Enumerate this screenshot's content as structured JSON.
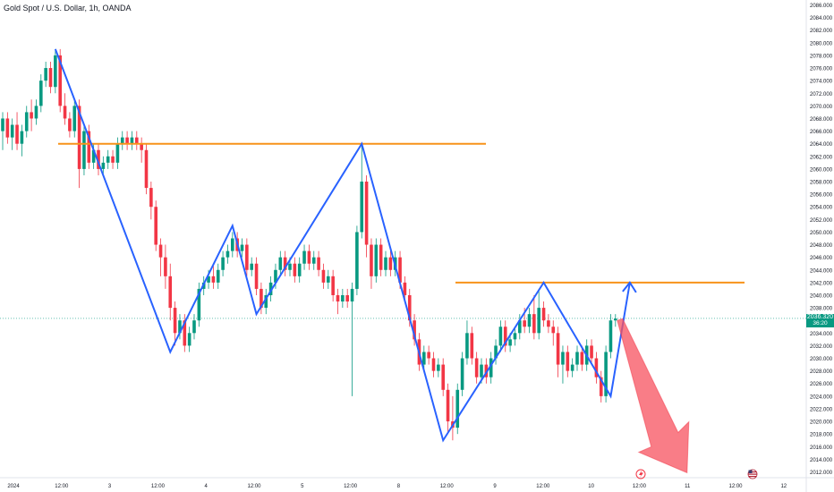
{
  "title": "Gold Spot / U.S. Dollar, 1h, OANDA",
  "colors": {
    "up": "#089981",
    "down": "#f23645",
    "pattern": "#2962ff",
    "level": "#f7931a",
    "arrow_down": "#f7525f",
    "bg": "#ffffff",
    "text": "#131722",
    "current_price_line": "#089981"
  },
  "current_price": {
    "value": "2036.320",
    "countdown": "36:20"
  },
  "chart_data": {
    "type": "candlestick",
    "title": "Gold Spot / U.S. Dollar, 1h, OANDA",
    "ylim": [
      2010,
      2087
    ],
    "y_ticks": [
      2012.0,
      2014.0,
      2016.0,
      2018.0,
      2020.0,
      2022.0,
      2024.0,
      2026.0,
      2028.0,
      2030.0,
      2032.0,
      2034.0,
      2036.0,
      2038.0,
      2040.0,
      2042.0,
      2044.0,
      2046.0,
      2048.0,
      2050.0,
      2052.0,
      2054.0,
      2056.0,
      2058.0,
      2060.0,
      2062.0,
      2064.0,
      2066.0,
      2068.0,
      2070.0,
      2072.0,
      2074.0,
      2076.0,
      2078.0,
      2080.0,
      2082.0,
      2084.0,
      2086.0
    ],
    "x_ticks": [
      "2024",
      "12:00",
      "3",
      "12:00",
      "4",
      "12:00",
      "5",
      "12:00",
      "8",
      "12:00",
      "9",
      "12:00",
      "10",
      "12:00",
      "11",
      "12:00",
      "12"
    ],
    "candles": [
      {
        "o": 2066.0,
        "c": 2068.0,
        "h": 2069.0,
        "l": 2063.0
      },
      {
        "o": 2068.0,
        "c": 2065.0,
        "h": 2069.0,
        "l": 2064.0
      },
      {
        "o": 2065.0,
        "c": 2067.0,
        "h": 2068.0,
        "l": 2063.0
      },
      {
        "o": 2067.0,
        "c": 2064.0,
        "h": 2069.0,
        "l": 2063.0
      },
      {
        "o": 2064.0,
        "c": 2066.0,
        "h": 2067.0,
        "l": 2062.0
      },
      {
        "o": 2066.0,
        "c": 2069.0,
        "h": 2070.0,
        "l": 2065.0
      },
      {
        "o": 2069.0,
        "c": 2068.0,
        "h": 2071.0,
        "l": 2066.0
      },
      {
        "o": 2068.0,
        "c": 2070.0,
        "h": 2071.0,
        "l": 2067.0
      },
      {
        "o": 2070.0,
        "c": 2074.0,
        "h": 2075.0,
        "l": 2069.0
      },
      {
        "o": 2074.0,
        "c": 2076.0,
        "h": 2077.0,
        "l": 2073.0
      },
      {
        "o": 2076.0,
        "c": 2073.0,
        "h": 2077.0,
        "l": 2072.0
      },
      {
        "o": 2073.0,
        "c": 2078.0,
        "h": 2079.0,
        "l": 2072.0
      },
      {
        "o": 2078.0,
        "c": 2070.0,
        "h": 2079.0,
        "l": 2069.0
      },
      {
        "o": 2070.0,
        "c": 2068.0,
        "h": 2072.0,
        "l": 2067.0
      },
      {
        "o": 2068.0,
        "c": 2066.0,
        "h": 2069.0,
        "l": 2065.0
      },
      {
        "o": 2066.0,
        "c": 2070.0,
        "h": 2071.0,
        "l": 2065.0
      },
      {
        "o": 2070.0,
        "c": 2060.0,
        "h": 2071.0,
        "l": 2057.0
      },
      {
        "o": 2060.0,
        "c": 2066.0,
        "h": 2067.0,
        "l": 2059.0
      },
      {
        "o": 2066.0,
        "c": 2061.0,
        "h": 2067.0,
        "l": 2060.0
      },
      {
        "o": 2061.0,
        "c": 2063.0,
        "h": 2064.0,
        "l": 2060.0
      },
      {
        "o": 2063.0,
        "c": 2060.0,
        "h": 2064.0,
        "l": 2059.0
      },
      {
        "o": 2060.0,
        "c": 2061.0,
        "h": 2062.0,
        "l": 2059.0
      },
      {
        "o": 2061.0,
        "c": 2062.0,
        "h": 2063.0,
        "l": 2060.0
      },
      {
        "o": 2062.0,
        "c": 2061.0,
        "h": 2063.0,
        "l": 2060.0
      },
      {
        "o": 2061.0,
        "c": 2064.0,
        "h": 2065.0,
        "l": 2060.0
      },
      {
        "o": 2064.0,
        "c": 2065.0,
        "h": 2066.0,
        "l": 2063.0
      },
      {
        "o": 2065.0,
        "c": 2064.0,
        "h": 2066.0,
        "l": 2063.0
      },
      {
        "o": 2064.0,
        "c": 2065.0,
        "h": 2066.0,
        "l": 2063.0
      },
      {
        "o": 2065.0,
        "c": 2064.0,
        "h": 2066.0,
        "l": 2063.0
      },
      {
        "o": 2064.0,
        "c": 2063.0,
        "h": 2065.0,
        "l": 2061.0
      },
      {
        "o": 2063.0,
        "c": 2057.0,
        "h": 2064.0,
        "l": 2056.0
      },
      {
        "o": 2057.0,
        "c": 2054.0,
        "h": 2058.0,
        "l": 2052.0
      },
      {
        "o": 2054.0,
        "c": 2048.0,
        "h": 2055.0,
        "l": 2047.0
      },
      {
        "o": 2048.0,
        "c": 2046.0,
        "h": 2049.0,
        "l": 2043.0
      },
      {
        "o": 2046.0,
        "c": 2043.0,
        "h": 2048.0,
        "l": 2041.0
      },
      {
        "o": 2043.0,
        "c": 2038.0,
        "h": 2045.0,
        "l": 2036.0
      },
      {
        "o": 2038.0,
        "c": 2034.0,
        "h": 2039.0,
        "l": 2032.0
      },
      {
        "o": 2034.0,
        "c": 2036.0,
        "h": 2037.0,
        "l": 2033.0
      },
      {
        "o": 2036.0,
        "c": 2032.0,
        "h": 2037.0,
        "l": 2031.0
      },
      {
        "o": 2032.0,
        "c": 2034.0,
        "h": 2035.0,
        "l": 2031.0
      },
      {
        "o": 2034.0,
        "c": 2036.0,
        "h": 2037.0,
        "l": 2033.0
      },
      {
        "o": 2036.0,
        "c": 2041.0,
        "h": 2042.0,
        "l": 2035.0
      },
      {
        "o": 2041.0,
        "c": 2042.0,
        "h": 2043.0,
        "l": 2040.0
      },
      {
        "o": 2042.0,
        "c": 2043.0,
        "h": 2044.0,
        "l": 2041.0
      },
      {
        "o": 2043.0,
        "c": 2042.0,
        "h": 2045.0,
        "l": 2041.0
      },
      {
        "o": 2042.0,
        "c": 2044.0,
        "h": 2045.0,
        "l": 2041.0
      },
      {
        "o": 2044.0,
        "c": 2046.0,
        "h": 2047.0,
        "l": 2043.0
      },
      {
        "o": 2046.0,
        "c": 2047.0,
        "h": 2048.0,
        "l": 2045.0
      },
      {
        "o": 2047.0,
        "c": 2049.0,
        "h": 2050.0,
        "l": 2046.0
      },
      {
        "o": 2049.0,
        "c": 2047.0,
        "h": 2050.0,
        "l": 2046.0
      },
      {
        "o": 2047.0,
        "c": 2048.0,
        "h": 2049.0,
        "l": 2046.0
      },
      {
        "o": 2048.0,
        "c": 2044.0,
        "h": 2049.0,
        "l": 2043.0
      },
      {
        "o": 2044.0,
        "c": 2045.0,
        "h": 2046.0,
        "l": 2043.0
      },
      {
        "o": 2045.0,
        "c": 2041.0,
        "h": 2046.0,
        "l": 2040.0
      },
      {
        "o": 2041.0,
        "c": 2038.0,
        "h": 2042.0,
        "l": 2037.0
      },
      {
        "o": 2038.0,
        "c": 2040.0,
        "h": 2041.0,
        "l": 2037.0
      },
      {
        "o": 2040.0,
        "c": 2042.0,
        "h": 2043.0,
        "l": 2039.0
      },
      {
        "o": 2042.0,
        "c": 2044.0,
        "h": 2045.0,
        "l": 2041.0
      },
      {
        "o": 2044.0,
        "c": 2046.0,
        "h": 2047.0,
        "l": 2043.0
      },
      {
        "o": 2046.0,
        "c": 2044.0,
        "h": 2047.0,
        "l": 2043.0
      },
      {
        "o": 2044.0,
        "c": 2045.0,
        "h": 2046.0,
        "l": 2043.0
      },
      {
        "o": 2045.0,
        "c": 2043.0,
        "h": 2046.0,
        "l": 2042.0
      },
      {
        "o": 2043.0,
        "c": 2045.0,
        "h": 2046.0,
        "l": 2042.0
      },
      {
        "o": 2045.0,
        "c": 2047.0,
        "h": 2048.0,
        "l": 2044.0
      },
      {
        "o": 2047.0,
        "c": 2045.0,
        "h": 2048.0,
        "l": 2044.0
      },
      {
        "o": 2045.0,
        "c": 2046.0,
        "h": 2047.0,
        "l": 2044.0
      },
      {
        "o": 2046.0,
        "c": 2044.0,
        "h": 2047.0,
        "l": 2043.0
      },
      {
        "o": 2044.0,
        "c": 2042.0,
        "h": 2045.0,
        "l": 2041.0
      },
      {
        "o": 2042.0,
        "c": 2043.0,
        "h": 2044.0,
        "l": 2041.0
      },
      {
        "o": 2043.0,
        "c": 2040.0,
        "h": 2044.0,
        "l": 2039.0
      },
      {
        "o": 2040.0,
        "c": 2039.0,
        "h": 2041.0,
        "l": 2037.0
      },
      {
        "o": 2039.0,
        "c": 2040.0,
        "h": 2041.0,
        "l": 2038.0
      },
      {
        "o": 2040.0,
        "c": 2039.0,
        "h": 2041.0,
        "l": 2038.0
      },
      {
        "o": 2039.0,
        "c": 2041.0,
        "h": 2042.0,
        "l": 2024.0
      },
      {
        "o": 2041.0,
        "c": 2050.0,
        "h": 2051.0,
        "l": 2040.0
      },
      {
        "o": 2050.0,
        "c": 2058.0,
        "h": 2064.0,
        "l": 2049.0
      },
      {
        "o": 2058.0,
        "c": 2048.0,
        "h": 2059.0,
        "l": 2046.0
      },
      {
        "o": 2048.0,
        "c": 2043.0,
        "h": 2049.0,
        "l": 2041.0
      },
      {
        "o": 2043.0,
        "c": 2048.0,
        "h": 2049.0,
        "l": 2042.0
      },
      {
        "o": 2048.0,
        "c": 2044.0,
        "h": 2049.0,
        "l": 2043.0
      },
      {
        "o": 2044.0,
        "c": 2046.0,
        "h": 2047.0,
        "l": 2043.0
      },
      {
        "o": 2046.0,
        "c": 2044.0,
        "h": 2047.0,
        "l": 2043.0
      },
      {
        "o": 2044.0,
        "c": 2046.0,
        "h": 2047.0,
        "l": 2043.0
      },
      {
        "o": 2046.0,
        "c": 2042.0,
        "h": 2047.0,
        "l": 2041.0
      },
      {
        "o": 2042.0,
        "c": 2040.0,
        "h": 2043.0,
        "l": 2039.0
      },
      {
        "o": 2040.0,
        "c": 2036.0,
        "h": 2041.0,
        "l": 2035.0
      },
      {
        "o": 2036.0,
        "c": 2033.0,
        "h": 2037.0,
        "l": 2032.0
      },
      {
        "o": 2033.0,
        "c": 2029.0,
        "h": 2034.0,
        "l": 2028.0
      },
      {
        "o": 2029.0,
        "c": 2031.0,
        "h": 2032.0,
        "l": 2028.0
      },
      {
        "o": 2031.0,
        "c": 2030.0,
        "h": 2032.0,
        "l": 2029.0
      },
      {
        "o": 2030.0,
        "c": 2028.0,
        "h": 2031.0,
        "l": 2027.0
      },
      {
        "o": 2028.0,
        "c": 2029.0,
        "h": 2030.0,
        "l": 2027.0
      },
      {
        "o": 2029.0,
        "c": 2025.0,
        "h": 2030.0,
        "l": 2024.0
      },
      {
        "o": 2025.0,
        "c": 2020.0,
        "h": 2026.0,
        "l": 2018.0
      },
      {
        "o": 2020.0,
        "c": 2019.0,
        "h": 2024.0,
        "l": 2017.0
      },
      {
        "o": 2019.0,
        "c": 2025.0,
        "h": 2026.0,
        "l": 2018.0
      },
      {
        "o": 2025.0,
        "c": 2030.0,
        "h": 2031.0,
        "l": 2024.0
      },
      {
        "o": 2030.0,
        "c": 2034.0,
        "h": 2036.0,
        "l": 2029.0
      },
      {
        "o": 2034.0,
        "c": 2030.0,
        "h": 2035.0,
        "l": 2029.0
      },
      {
        "o": 2030.0,
        "c": 2027.0,
        "h": 2031.0,
        "l": 2026.0
      },
      {
        "o": 2027.0,
        "c": 2029.0,
        "h": 2030.0,
        "l": 2026.0
      },
      {
        "o": 2029.0,
        "c": 2027.0,
        "h": 2030.0,
        "l": 2026.0
      },
      {
        "o": 2027.0,
        "c": 2030.0,
        "h": 2031.0,
        "l": 2026.0
      },
      {
        "o": 2030.0,
        "c": 2032.0,
        "h": 2033.0,
        "l": 2029.0
      },
      {
        "o": 2032.0,
        "c": 2035.0,
        "h": 2036.0,
        "l": 2031.0
      },
      {
        "o": 2035.0,
        "c": 2032.0,
        "h": 2036.0,
        "l": 2031.0
      },
      {
        "o": 2032.0,
        "c": 2033.0,
        "h": 2034.0,
        "l": 2031.0
      },
      {
        "o": 2033.0,
        "c": 2034.0,
        "h": 2035.0,
        "l": 2032.0
      },
      {
        "o": 2034.0,
        "c": 2036.0,
        "h": 2037.0,
        "l": 2033.0
      },
      {
        "o": 2036.0,
        "c": 2035.0,
        "h": 2038.0,
        "l": 2034.0
      },
      {
        "o": 2035.0,
        "c": 2037.0,
        "h": 2038.0,
        "l": 2034.0
      },
      {
        "o": 2037.0,
        "c": 2034.0,
        "h": 2040.0,
        "l": 2033.0
      },
      {
        "o": 2034.0,
        "c": 2038.0,
        "h": 2041.0,
        "l": 2033.0
      },
      {
        "o": 2038.0,
        "c": 2036.0,
        "h": 2039.0,
        "l": 2035.0
      },
      {
        "o": 2036.0,
        "c": 2035.0,
        "h": 2037.0,
        "l": 2034.0
      },
      {
        "o": 2035.0,
        "c": 2034.0,
        "h": 2036.0,
        "l": 2032.0
      },
      {
        "o": 2034.0,
        "c": 2029.0,
        "h": 2035.0,
        "l": 2027.0
      },
      {
        "o": 2029.0,
        "c": 2031.0,
        "h": 2032.0,
        "l": 2026.0
      },
      {
        "o": 2031.0,
        "c": 2028.0,
        "h": 2032.0,
        "l": 2027.0
      },
      {
        "o": 2028.0,
        "c": 2029.0,
        "h": 2030.0,
        "l": 2027.0
      },
      {
        "o": 2029.0,
        "c": 2031.0,
        "h": 2032.0,
        "l": 2028.0
      },
      {
        "o": 2031.0,
        "c": 2029.0,
        "h": 2032.0,
        "l": 2028.0
      },
      {
        "o": 2029.0,
        "c": 2032.0,
        "h": 2033.0,
        "l": 2028.0
      },
      {
        "o": 2032.0,
        "c": 2030.0,
        "h": 2033.0,
        "l": 2029.0
      },
      {
        "o": 2030.0,
        "c": 2027.0,
        "h": 2031.0,
        "l": 2026.0
      },
      {
        "o": 2027.0,
        "c": 2024.0,
        "h": 2028.0,
        "l": 2023.0
      },
      {
        "o": 2024.0,
        "c": 2031.0,
        "h": 2032.0,
        "l": 2023.0
      },
      {
        "o": 2031.0,
        "c": 2036.0,
        "h": 2037.0,
        "l": 2030.0
      },
      {
        "o": 2036.0,
        "c": 2036.3,
        "h": 2037.0,
        "l": 2035.0
      }
    ],
    "annotations": {
      "resistance_levels": [
        2064.0,
        2042.0
      ],
      "pattern_zigzag": [
        {
          "bar": 11,
          "y": 2079.0
        },
        {
          "bar": 35,
          "y": 2031.0
        },
        {
          "bar": 48,
          "y": 2051.0
        },
        {
          "bar": 53,
          "y": 2037.0
        },
        {
          "bar": 75,
          "y": 2064.0
        },
        {
          "bar": 92,
          "y": 2017.0
        },
        {
          "bar": 113,
          "y": 2042.0
        },
        {
          "bar": 127,
          "y": 2024.0
        },
        {
          "bar": 131,
          "y": 2042.0
        }
      ],
      "projected_drop_target": 2012.0
    }
  }
}
